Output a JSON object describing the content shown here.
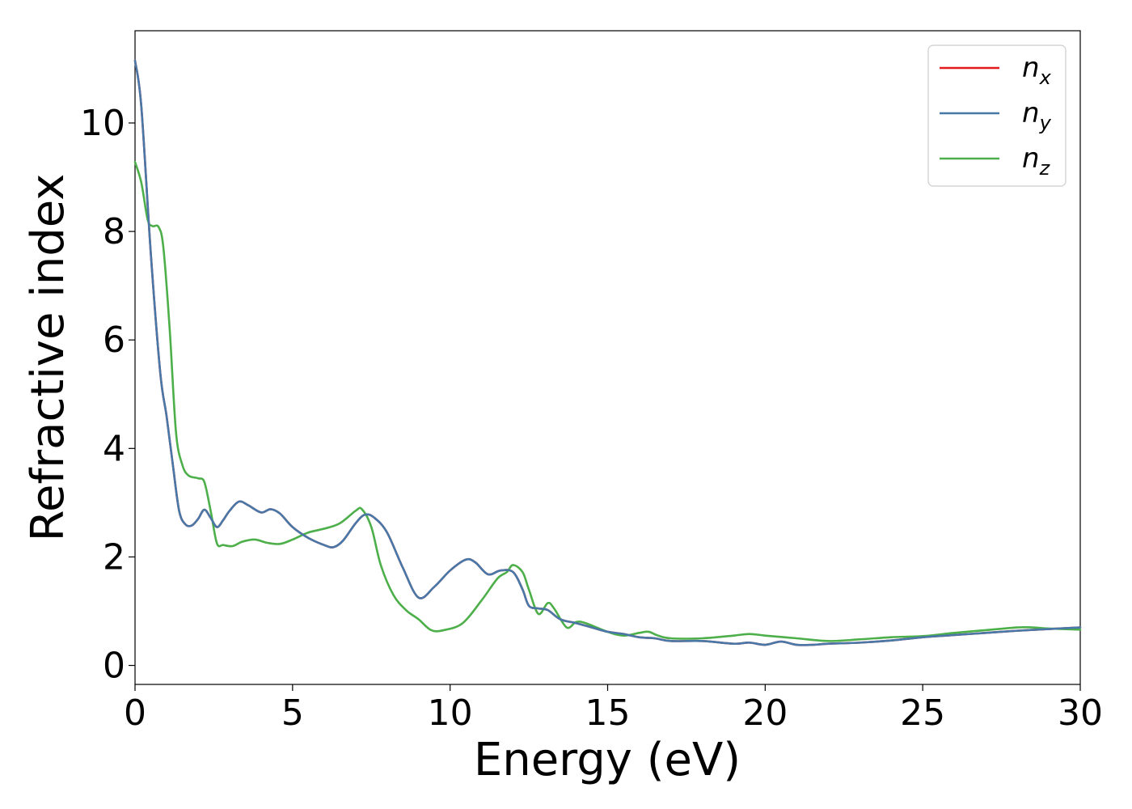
{
  "chart_data": {
    "type": "line",
    "xlabel": "Energy (eV)",
    "ylabel": "Refractive index",
    "xlim": [
      0,
      30
    ],
    "ylim": [
      -0.35,
      11.7
    ],
    "xticks": [
      0,
      5,
      10,
      15,
      20,
      25,
      30
    ],
    "yticks": [
      0,
      2,
      4,
      6,
      8,
      10
    ],
    "grid": false,
    "legend_position": "top-right",
    "series": [
      {
        "name": "n",
        "sub": "x",
        "color": "#e41a1c",
        "x": [
          0,
          0.2,
          0.5,
          0.8,
          1.0,
          1.2,
          1.4,
          1.6,
          1.8,
          2.0,
          2.2,
          2.4,
          2.6,
          2.8,
          3.0,
          3.3,
          3.6,
          4.0,
          4.3,
          4.6,
          5.0,
          5.5,
          6.0,
          6.3,
          6.6,
          7.0,
          7.3,
          7.6,
          8.0,
          8.5,
          9.0,
          9.5,
          10.0,
          10.5,
          10.8,
          11.2,
          11.6,
          12.0,
          12.3,
          12.5,
          12.8,
          13.1,
          13.5,
          14.0,
          14.5,
          15.0,
          15.5,
          16.0,
          16.5,
          17.0,
          18.0,
          19.0,
          19.5,
          20.0,
          20.5,
          21.0,
          21.5,
          22.0,
          23.0,
          24.0,
          25.0,
          26.0,
          27.0,
          28.0,
          29.0,
          30.0
        ],
        "values": [
          11.15,
          10.3,
          7.6,
          5.4,
          4.6,
          3.7,
          2.85,
          2.6,
          2.58,
          2.7,
          2.87,
          2.72,
          2.55,
          2.68,
          2.85,
          3.02,
          2.95,
          2.82,
          2.88,
          2.8,
          2.55,
          2.35,
          2.22,
          2.18,
          2.3,
          2.62,
          2.78,
          2.72,
          2.45,
          1.8,
          1.25,
          1.45,
          1.75,
          1.95,
          1.9,
          1.68,
          1.75,
          1.72,
          1.4,
          1.1,
          1.05,
          1.02,
          0.85,
          0.78,
          0.7,
          0.62,
          0.58,
          0.52,
          0.5,
          0.45,
          0.45,
          0.4,
          0.42,
          0.38,
          0.44,
          0.38,
          0.38,
          0.4,
          0.42,
          0.46,
          0.52,
          0.56,
          0.6,
          0.64,
          0.67,
          0.7
        ]
      },
      {
        "name": "n",
        "sub": "y",
        "color": "#4878a8",
        "x": [
          0,
          0.2,
          0.5,
          0.8,
          1.0,
          1.2,
          1.4,
          1.6,
          1.8,
          2.0,
          2.2,
          2.4,
          2.6,
          2.8,
          3.0,
          3.3,
          3.6,
          4.0,
          4.3,
          4.6,
          5.0,
          5.5,
          6.0,
          6.3,
          6.6,
          7.0,
          7.3,
          7.6,
          8.0,
          8.5,
          9.0,
          9.5,
          10.0,
          10.5,
          10.8,
          11.2,
          11.6,
          12.0,
          12.3,
          12.5,
          12.8,
          13.1,
          13.5,
          14.0,
          14.5,
          15.0,
          15.5,
          16.0,
          16.5,
          17.0,
          18.0,
          19.0,
          19.5,
          20.0,
          20.5,
          21.0,
          21.5,
          22.0,
          23.0,
          24.0,
          25.0,
          26.0,
          27.0,
          28.0,
          29.0,
          30.0
        ],
        "values": [
          11.15,
          10.3,
          7.6,
          5.4,
          4.6,
          3.7,
          2.85,
          2.6,
          2.58,
          2.7,
          2.87,
          2.72,
          2.55,
          2.68,
          2.85,
          3.02,
          2.95,
          2.82,
          2.88,
          2.8,
          2.55,
          2.35,
          2.22,
          2.18,
          2.3,
          2.62,
          2.78,
          2.72,
          2.45,
          1.8,
          1.25,
          1.45,
          1.75,
          1.95,
          1.9,
          1.68,
          1.75,
          1.72,
          1.4,
          1.1,
          1.05,
          1.02,
          0.85,
          0.78,
          0.7,
          0.62,
          0.58,
          0.52,
          0.5,
          0.45,
          0.45,
          0.4,
          0.42,
          0.38,
          0.44,
          0.38,
          0.38,
          0.4,
          0.42,
          0.46,
          0.52,
          0.56,
          0.6,
          0.64,
          0.67,
          0.7
        ]
      },
      {
        "name": "n",
        "sub": "z",
        "color": "#4daf4a",
        "x": [
          0,
          0.2,
          0.4,
          0.55,
          0.75,
          0.9,
          1.1,
          1.3,
          1.5,
          1.7,
          2.0,
          2.2,
          2.4,
          2.6,
          2.8,
          3.1,
          3.4,
          3.8,
          4.2,
          4.6,
          5.0,
          5.5,
          6.0,
          6.5,
          7.0,
          7.2,
          7.5,
          7.8,
          8.2,
          8.6,
          9.0,
          9.4,
          9.8,
          10.4,
          11.0,
          11.5,
          11.8,
          12.0,
          12.3,
          12.5,
          12.8,
          13.1,
          13.3,
          13.7,
          14.0,
          14.3,
          15.0,
          15.5,
          16.0,
          16.3,
          16.6,
          17.0,
          18.0,
          19.0,
          19.5,
          20.0,
          21.0,
          22.0,
          23.0,
          24.0,
          25.0,
          26.0,
          27.0,
          28.0,
          28.5,
          29.0,
          30.0
        ],
        "values": [
          9.28,
          8.9,
          8.22,
          8.1,
          8.08,
          7.7,
          6.2,
          4.3,
          3.7,
          3.5,
          3.45,
          3.38,
          2.85,
          2.25,
          2.22,
          2.2,
          2.28,
          2.32,
          2.26,
          2.24,
          2.32,
          2.45,
          2.52,
          2.62,
          2.85,
          2.88,
          2.55,
          1.85,
          1.3,
          1.02,
          0.85,
          0.65,
          0.65,
          0.78,
          1.2,
          1.6,
          1.72,
          1.85,
          1.72,
          1.4,
          0.95,
          1.15,
          1.05,
          0.7,
          0.8,
          0.78,
          0.62,
          0.55,
          0.6,
          0.62,
          0.55,
          0.5,
          0.5,
          0.55,
          0.58,
          0.55,
          0.5,
          0.45,
          0.48,
          0.52,
          0.54,
          0.6,
          0.65,
          0.7,
          0.7,
          0.68,
          0.66
        ]
      }
    ]
  }
}
